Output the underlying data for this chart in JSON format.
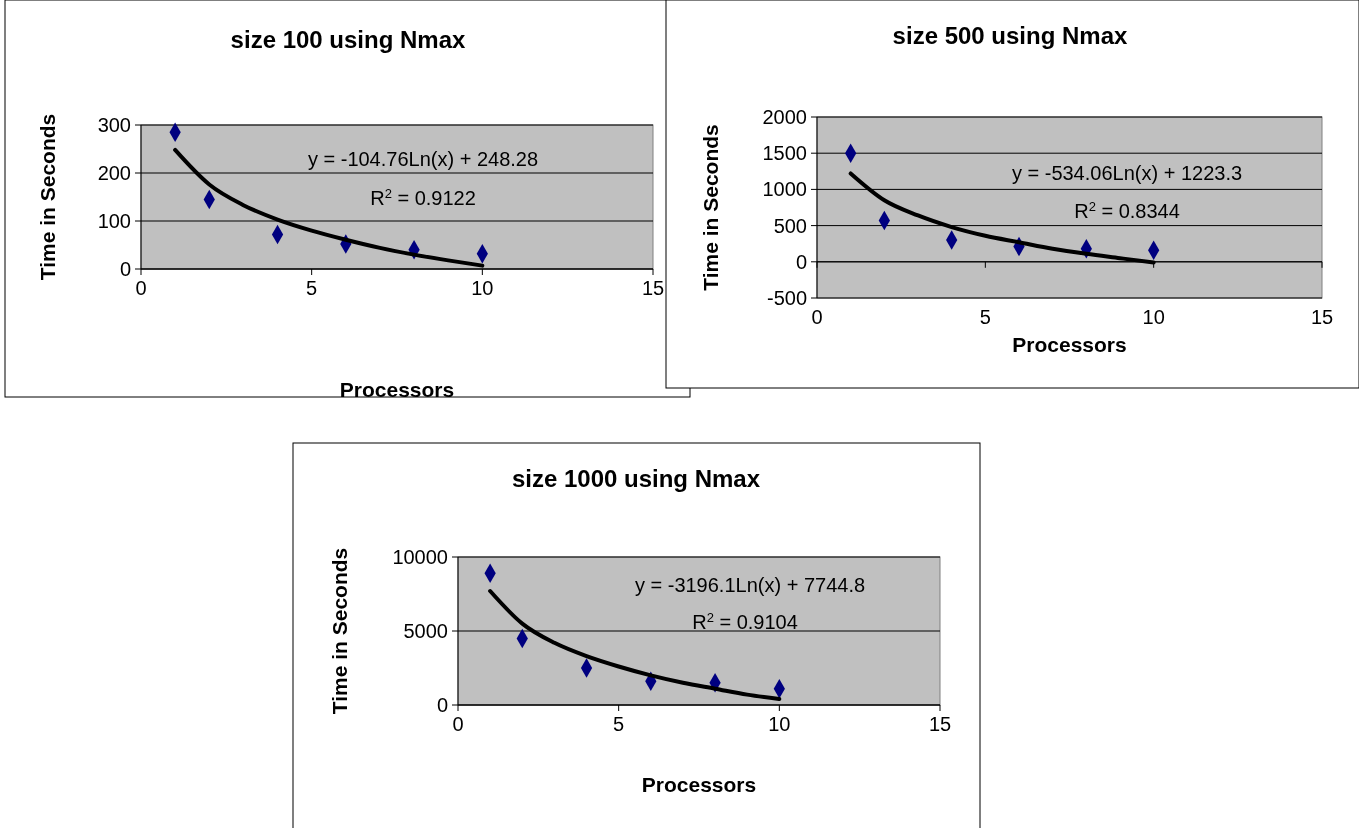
{
  "chart_data": [
    {
      "type": "scatter",
      "title": "size 100 using Nmax",
      "xlabel": "Processors",
      "ylabel": "Time in Seconds",
      "x": [
        1,
        2,
        4,
        6,
        8,
        10
      ],
      "xlim": [
        0,
        15
      ],
      "xticks": [
        0,
        5,
        10,
        15
      ],
      "ylim": [
        0,
        300
      ],
      "yticks": [
        0,
        100,
        200,
        300
      ],
      "grid": "y",
      "series": [
        {
          "color": "#000080",
          "marker": "diamond",
          "values": [
            285,
            145,
            72,
            52,
            40,
            32
          ]
        },
        {
          "type": "line",
          "marker": "none",
          "color": "#000000",
          "x": [
            1,
            2,
            3,
            4,
            5,
            6,
            7,
            8,
            9,
            10
          ],
          "values": [
            248,
            176,
            133,
            103,
            80,
            61,
            44,
            30,
            18,
            7
          ]
        }
      ],
      "annotations": [
        "y = -104.76Ln(x) + 248.28",
        "R$^{2}$ = 0.9122"
      ]
    },
    {
      "type": "scatter",
      "title": "size 500 using Nmax",
      "xlabel": "Processors",
      "ylabel": "Time in Seconds",
      "x": [
        1,
        2,
        4,
        6,
        8,
        10
      ],
      "xlim": [
        0,
        15
      ],
      "xticks": [
        0,
        5,
        10,
        15
      ],
      "ylim": [
        -500,
        2000
      ],
      "yticks": [
        -500,
        0,
        500,
        1000,
        1500,
        2000
      ],
      "grid": "y",
      "series": [
        {
          "color": "#000080",
          "marker": "diamond",
          "values": [
            1500,
            570,
            300,
            210,
            180,
            160
          ]
        },
        {
          "type": "line",
          "marker": "none",
          "color": "#000000",
          "x": [
            1,
            2,
            3,
            4,
            5,
            6,
            7,
            8,
            9,
            10
          ],
          "values": [
            1220,
            850,
            640,
            480,
            360,
            270,
            180,
            110,
            50,
            -10
          ]
        }
      ],
      "annotations": [
        "y = -534.06Ln(x) + 1223.3",
        "R$^{2}$ = 0.8344"
      ]
    },
    {
      "type": "scatter",
      "title": "size 1000 using Nmax",
      "xlabel": "Processors",
      "ylabel": "Time in Seconds",
      "x": [
        1,
        2,
        4,
        6,
        8,
        10
      ],
      "xlim": [
        0,
        15
      ],
      "xticks": [
        0,
        5,
        10,
        15
      ],
      "ylim": [
        0,
        10000
      ],
      "yticks": [
        0,
        5000,
        10000
      ],
      "grid": "y",
      "series": [
        {
          "color": "#000080",
          "marker": "diamond",
          "values": [
            8900,
            4500,
            2500,
            1600,
            1500,
            1100
          ]
        },
        {
          "type": "line",
          "marker": "none",
          "color": "#000000",
          "x": [
            1,
            2,
            3,
            4,
            5,
            6,
            7,
            8,
            9,
            10
          ],
          "values": [
            7700,
            5500,
            4200,
            3300,
            2600,
            2000,
            1500,
            1100,
            700,
            400
          ]
        }
      ],
      "annotations": [
        "y = -3196.1Ln(x) + 7744.8",
        "R$^{2}$ = 0.9104"
      ]
    }
  ]
}
